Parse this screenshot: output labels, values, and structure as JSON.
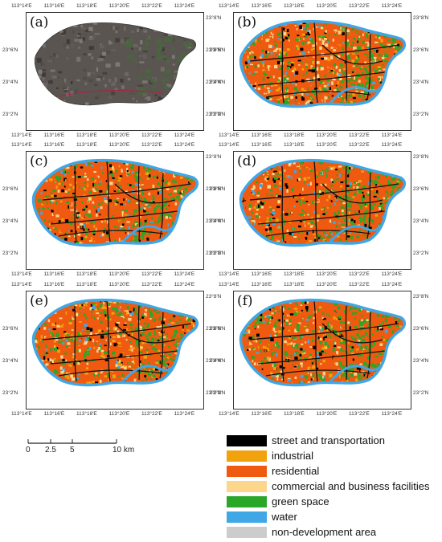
{
  "panels": [
    {
      "label": "(a)",
      "kind": "satellite"
    },
    {
      "label": "(b)",
      "kind": "landuse",
      "mix": [
        0.08,
        0.1,
        0.34,
        0.2,
        0.22,
        0.06
      ]
    },
    {
      "label": "(c)",
      "kind": "landuse",
      "mix": [
        0.08,
        0.08,
        0.48,
        0.1,
        0.22,
        0.04
      ]
    },
    {
      "label": "(d)",
      "kind": "landuse",
      "mix": [
        0.08,
        0.08,
        0.46,
        0.1,
        0.22,
        0.06
      ]
    },
    {
      "label": "(e)",
      "kind": "landuse",
      "mix": [
        0.08,
        0.12,
        0.4,
        0.14,
        0.22,
        0.04
      ]
    },
    {
      "label": "(f)",
      "kind": "landuse",
      "mix": [
        0.08,
        0.08,
        0.42,
        0.12,
        0.26,
        0.04
      ]
    }
  ],
  "ticks": {
    "top": [
      "113°14'E",
      "113°16'E",
      "113°18'E",
      "113°20'E",
      "113°22'E",
      "113°24'E"
    ],
    "bottom": [
      "113°14'E",
      "113°16'E",
      "113°18'E",
      "113°20'E",
      "113°22'E",
      "113°24'E"
    ],
    "left": [
      "23°6'N",
      "23°4'N",
      "23°2'N"
    ],
    "right": [
      "23°8'N",
      "23°6'N",
      "23°4'N",
      "23°2'N"
    ]
  },
  "scalebar": {
    "labels": [
      "0",
      "2.5",
      "5",
      "10 km"
    ]
  },
  "legend": [
    {
      "label": "street and transportation",
      "color": "#000000"
    },
    {
      "label": "industrial",
      "color": "#f2a20c"
    },
    {
      "label": "residential",
      "color": "#f05a10"
    },
    {
      "label": "commercial and business facilities",
      "color": "#fcd68a"
    },
    {
      "label": "green space",
      "color": "#2aa628"
    },
    {
      "label": "water",
      "color": "#3fa7e6"
    },
    {
      "label": "non-development area",
      "color": "#cccccc"
    }
  ]
}
